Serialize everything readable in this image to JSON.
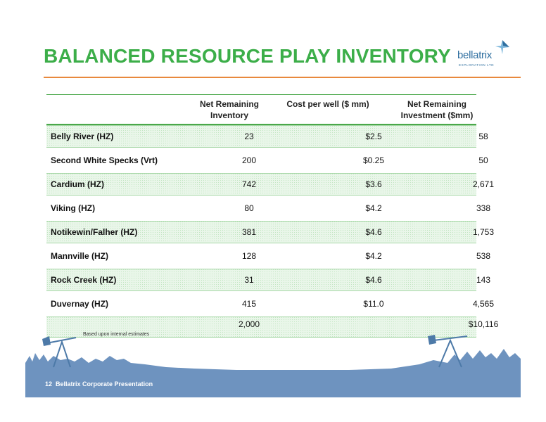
{
  "title": "BALANCED RESOURCE PLAY INVENTORY",
  "logo": {
    "name": "bellatrix",
    "sub": "EXPLORATION LTD"
  },
  "colors": {
    "title": "#3cae49",
    "rule": "#e8893d",
    "band": "#e9f6e9",
    "footer_bg": "#6e93bf"
  },
  "table": {
    "headers": {
      "inventory": "Net Remaining Inventory",
      "cost": "Cost per well ($ mm)",
      "investment": "Net Remaining Investment ($mm)"
    },
    "rows": [
      {
        "name": "Belly River (HZ)",
        "inventory": "23",
        "cost": "$2.5",
        "investment": "58"
      },
      {
        "name": "Second White Specks (Vrt)",
        "inventory": "200",
        "cost": "$0.25",
        "investment": "50"
      },
      {
        "name": "Cardium (HZ)",
        "inventory": "742",
        "cost": "$3.6",
        "investment": "2,671"
      },
      {
        "name": "Viking (HZ)",
        "inventory": "80",
        "cost": "$4.2",
        "investment": "338"
      },
      {
        "name": "Notikewin/Falher (HZ)",
        "inventory": "381",
        "cost": "$4.6",
        "investment": "1,753"
      },
      {
        "name": "Mannville (HZ)",
        "inventory": "128",
        "cost": "$4.2",
        "investment": "538"
      },
      {
        "name": "Rock Creek (HZ)",
        "inventory": "31",
        "cost": "$4.6",
        "investment": "143"
      },
      {
        "name": "Duvernay (HZ)",
        "inventory": "415",
        "cost": "$11.0",
        "investment": "4,565"
      }
    ],
    "total": {
      "inventory": "2,000",
      "investment": "$10,116"
    }
  },
  "note": "Based upon internal estimates",
  "footer": {
    "page": "12",
    "text": "Bellatrix Corporate Presentation"
  }
}
